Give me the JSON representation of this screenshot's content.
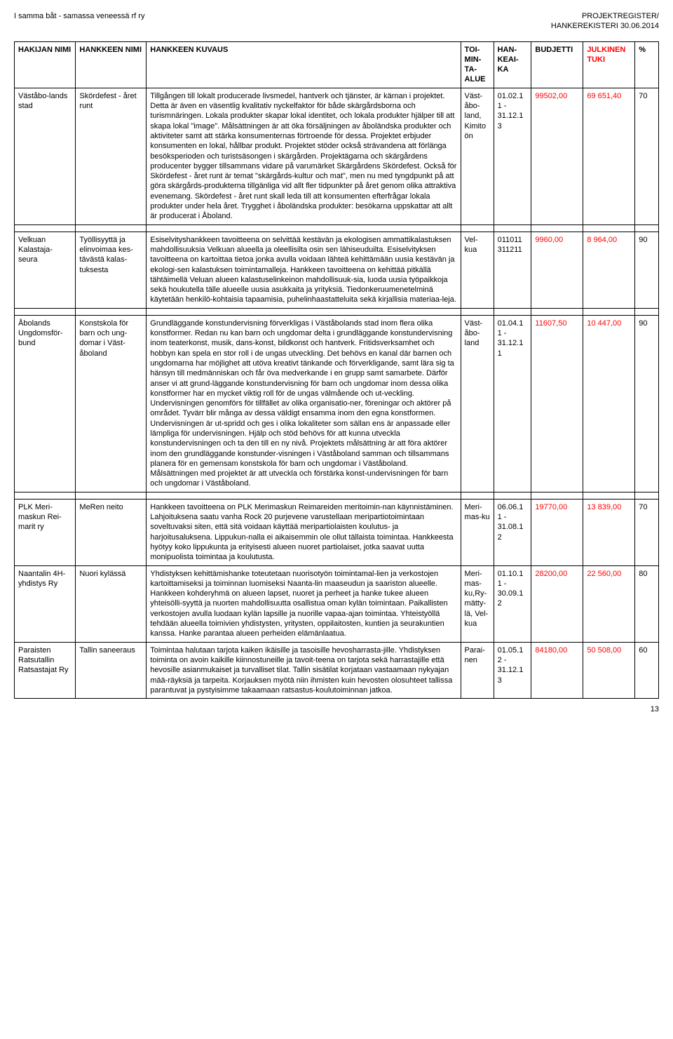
{
  "header": {
    "left": "I samma båt - samassa veneessä rf ry",
    "right_line1": "PROJEKTREGISTER/",
    "right_line2": "HANKEREKISTERI 30.06.2014"
  },
  "columns": {
    "applicant": "HAKIJAN NIMI",
    "project": "HANKKEEN NIMI",
    "description": "HANKKEEN KUVAUS",
    "area": "TOI-MIN-TA-ALUE",
    "period": "HAN-KEAI-KA",
    "budget": "BUDJETTI",
    "support": "JULKINEN TUKI",
    "pct": "%"
  },
  "rows": [
    {
      "applicant": "Väståbo-lands stad",
      "project": "Skördefest - året runt",
      "description": "Tillgången till lokalt producerade livsmedel, hantverk och tjänster, är kärnan i projektet. Detta är även en väsentlig kvalitativ nyckelfaktor för både skärgårdsborna och turismnäringen. Lokala produkter skapar lokal identitet, och lokala produkter hjälper till att skapa lokal \"image\". Målsättningen är att öka försäljningen av åboländska produkter och aktiviteter samt att stärka konsumenternas förtroende för dessa. Projektet erbjuder konsumenten en lokal, hållbar produkt. Projektet stöder också strävandena att förlänga besöksperioden och turistsäsongen i skärgården. Projektägarna och skärgårdens producenter bygger tillsammans vidare på varumärket Skärgårdens Skördefest. Också för Skördefest - året runt är temat \"skärgårds-kultur och mat\", men nu med tyngdpunkt på att göra skärgårds-produkterna tillgänliga vid allt fler tidpunkter på året genom olika attraktiva evenemang. Skördefest - året runt skall leda till att konsumenten efterfrågar lokala produkter under hela året. Trygghet i åboländska produkter: besökarna uppskattar att allt är producerat i Åboland.",
      "area": "Väst-åbo-land, Kimito ön",
      "period": "01.02.1 1 - 31.12.1 3",
      "budget": "99502,00",
      "support": "69 651,40",
      "pct": "70"
    },
    {
      "applicant": "Velkuan Kalastaja-seura",
      "project": "Työllisyyttä ja elinvoimaa kes-tävästä kalas-tuksesta",
      "description": "Esiselvityshankkeen tavoitteena on selvittää kestävän ja ekologisen ammattikalastuksen mahdollisuuksia Velkuan alueella ja oleellisilta osin sen lähiseuduilta. Esiselvityksen tavoitteena on kartoittaa tietoa jonka avulla voidaan lähteä kehittämään uusia kestävän ja ekologi-sen kalastuksen toimintamalleja. Hankkeen tavoitteena on kehittää pitkällä tähtäimellä Veluan alueen kalastuselinkeinon mahdollisuuk-sia, luoda uusia työpaikkoja sekä houkutella tälle alueelle uusia asukkaita ja yrityksiä. Tiedonkeruumenetelminä käytetään henkilö-kohtaisia tapaamisia, puhelinhaastatteluita sekä kirjallisia materiaa-leja.",
      "area": "Vel-kua",
      "period": "011011 311211",
      "budget": "9960,00",
      "support": "8 964,00",
      "pct": "90"
    },
    {
      "applicant": "Åbolands Ungdomsför-bund",
      "project": "Konstskola för barn och ung-domar i Väst-åboland",
      "description": "Grundläggande konstundervisning förverkligas i Väståbolands stad inom flera olika konstformer. Redan nu kan barn och ungdomar delta i grundläggande konstundervisning inom teaterkonst, musik, dans-konst, bildkonst och hantverk. Fritidsverksamhet och hobbyn kan spela en stor roll i de ungas utveckling. Det behövs en kanal där barnen och ungdomarna har möjlighet att utöva kreativt tänkande och förverkligande, samt lära sig ta hänsyn till medmänniskan och får öva medverkande i en grupp samt samarbete. Därför anser vi att grund-läggande konstundervisning för barn och ungdomar inom dessa olika konstformer har en mycket viktig roll för de ungas välmående och ut-veckling. Undervisningen genomförs för tillfället av olika organisatio-ner, föreningar och aktörer på området. Tyvärr blir många av dessa väldigt ensamma inom den egna konstformen. Undervisningen är ut-spridd och ges i olika lokaliteter som sällan ens är anpassade eller lämpliga för undervisningen. Hjälp och stöd behövs för att kunna utveckla konstundervisningen och ta den till en ny nivå. Projektets målsättning är att föra aktörer inom den grundläggande konstunder-visningen i Väståboland samman och tillsammans planera för en gemensam konstskola för barn och ungdomar i Väståboland. Målsättningen med projektet är att utveckla och förstärka konst-undervisningen för barn och ungdomar i Väståboland.",
      "area": "Väst-åbo-land",
      "period": "01.04.1 1 - 31.12.1 1",
      "budget": "11607,50",
      "support": "10 447,00",
      "pct": "90"
    },
    {
      "applicant": "PLK Meri-maskun Rei-marit ry",
      "project": "MeRen neito",
      "description": "Hankkeen tavoitteena on PLK Merimaskun Reimareiden meritoimin-nan käynnistäminen. Lahjoituksena saatu vanha Rock 20 purjevene varustellaan meripartiotoimintaan soveltuvaksi siten, että sitä voidaan käyttää meripartiolaisten koulutus- ja harjoitusaluksena. Lippukun-nalla ei aikaisemmin ole ollut tällaista toimintaa. Hankkeesta hyötyy koko lippukunta ja erityisesti alueen nuoret partiolaiset, jotka saavat uutta monipuolista toimintaa ja koulutusta.",
      "area": "Meri-mas-ku",
      "period": "06.06.1 1 - 31.08.1 2",
      "budget": "19770,00",
      "support": "13 839,00",
      "pct": "70"
    },
    {
      "applicant": "Naantalin 4H-yhdistys Ry",
      "project": "Nuori kylässä",
      "description": "Yhdistyksen kehittämishanke toteutetaan nuorisotyön toimintamal-lien ja verkostojen kartoittamiseksi ja toiminnan luomiseksi Naanta-lin maaseudun ja saariston alueelle. Hankkeen kohderyhmä on alueen lapset, nuoret ja perheet ja hanke tukee alueen yhteisölli-syyttä ja nuorten mahdollisuutta osallistua oman kylän toimintaan. Paikallisten verkostojen avulla luodaan kylän lapsille ja nuorille vapaa-ajan toimintaa. Yhteistyöllä tehdään alueella toimivien yhdistysten, yritysten, oppilaitosten, kuntien ja seurakuntien kanssa. Hanke parantaa alueen perheiden elämänlaatua.",
      "area": "Meri-mas-ku,Ry-mätty-lä, Vel-kua",
      "period": "01.10.1 1 - 30.09.1 2",
      "budget": "28200,00",
      "support": "22 560,00",
      "pct": "80"
    },
    {
      "applicant": "Paraisten Ratsutallin Ratsastajat Ry",
      "project": "Tallin saneeraus",
      "description": "Toimintaa halutaan tarjota kaiken ikäisille ja tasoisille hevosharrasta-jille. Yhdistyksen toiminta on avoin kaikille kiinnostuneille ja tavoit-teena on tarjota sekä harrastajille että hevosille asianmukaiset ja turvalliset tilat. Tallin sisätilat korjataan vastaamaan nykyajan mää-räyksiä ja tarpeita. Korjauksen myötä niin ihmisten kuin hevosten olosuhteet tallissa parantuvat ja pystyisimme takaamaan ratsastus-koulutoiminnan jatkoa.",
      "area": "Parai-nen",
      "period": "01.05.1 2 - 31.12.1 3",
      "budget": "84180,00",
      "support": "50 508,00",
      "pct": "60"
    }
  ],
  "page_number": "13"
}
